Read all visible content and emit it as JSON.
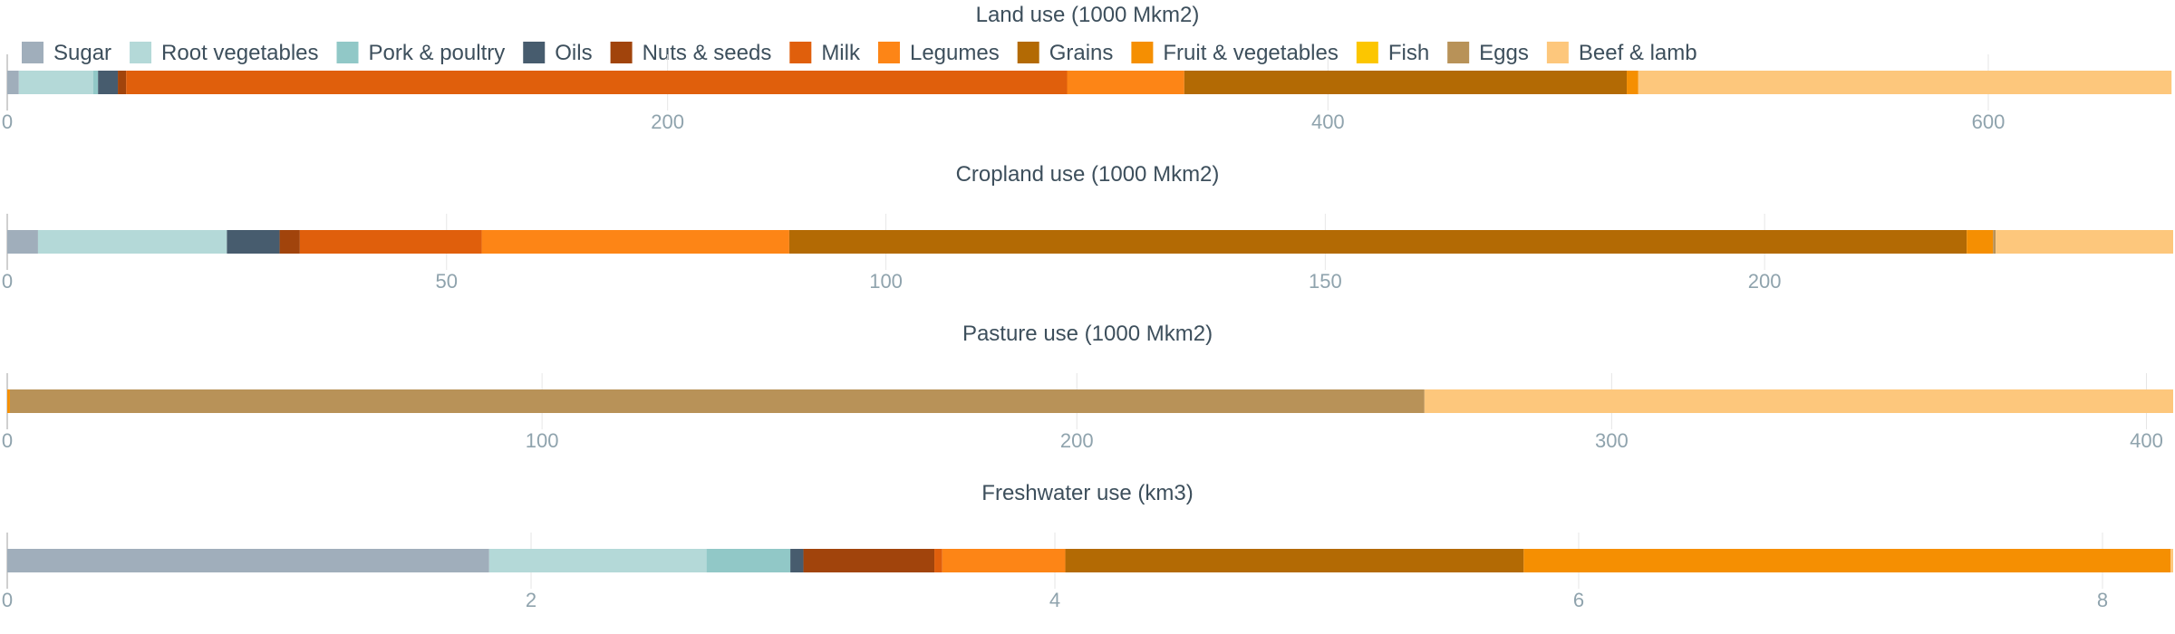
{
  "chart_data": {
    "type": "bar",
    "orientation": "horizontal",
    "stacked": true,
    "grid": true,
    "legend_position": "top",
    "legend": [
      {
        "name": "Sugar",
        "color": "#a0aebb"
      },
      {
        "name": "Root vegetables",
        "color": "#b4d9d8"
      },
      {
        "name": "Pork & poultry",
        "color": "#91c8c7"
      },
      {
        "name": "Oils",
        "color": "#475c6e"
      },
      {
        "name": "Nuts & seeds",
        "color": "#a1440c"
      },
      {
        "name": "Milk",
        "color": "#e05f0c"
      },
      {
        "name": "Legumes",
        "color": "#fd8516"
      },
      {
        "name": "Grains",
        "color": "#b36a04"
      },
      {
        "name": "Fruit & vegetables",
        "color": "#f58f02"
      },
      {
        "name": "Fish",
        "color": "#fcc600"
      },
      {
        "name": "Eggs",
        "color": "#b89258"
      },
      {
        "name": "Beef & lamb",
        "color": "#fdc77c"
      }
    ],
    "panels": [
      {
        "title": "Land use (1000 Mkm2)",
        "xlim": [
          0,
          656
        ],
        "ticks": [
          0,
          200,
          400,
          600
        ],
        "tick_labels": [
          "0",
          "200",
          "400",
          "600"
        ],
        "segments": [
          {
            "series": "Sugar",
            "value": 3.5
          },
          {
            "series": "Root vegetables",
            "value": 22.5
          },
          {
            "series": "Pork & poultry",
            "value": 1.5
          },
          {
            "series": "Oils",
            "value": 6
          },
          {
            "series": "Nuts & seeds",
            "value": 2.5
          },
          {
            "series": "Milk",
            "value": 285
          },
          {
            "series": "Legumes",
            "value": 35.5
          },
          {
            "series": "Grains",
            "value": 134
          },
          {
            "series": "Fruit & vegetables",
            "value": 3.5
          },
          {
            "series": "Fish",
            "value": 0
          },
          {
            "series": "Eggs",
            "value": 0
          },
          {
            "series": "Beef & lamb",
            "value": 161.5
          }
        ]
      },
      {
        "title": "Cropland use (1000 Mkm2)",
        "xlim": [
          0,
          246.5
        ],
        "ticks": [
          0,
          50,
          100,
          150,
          200
        ],
        "tick_labels": [
          "0",
          "50",
          "100",
          "150",
          "200"
        ],
        "segments": [
          {
            "series": "Sugar",
            "value": 3.5
          },
          {
            "series": "Root vegetables",
            "value": 21.5
          },
          {
            "series": "Pork & poultry",
            "value": 0
          },
          {
            "series": "Oils",
            "value": 6
          },
          {
            "series": "Nuts & seeds",
            "value": 2.3
          },
          {
            "series": "Milk",
            "value": 20.7
          },
          {
            "series": "Legumes",
            "value": 35
          },
          {
            "series": "Grains",
            "value": 134
          },
          {
            "series": "Fruit & vegetables",
            "value": 3
          },
          {
            "series": "Fish",
            "value": 0
          },
          {
            "series": "Eggs",
            "value": 0.3
          },
          {
            "series": "Beef & lamb",
            "value": 20.2
          }
        ]
      },
      {
        "title": "Pasture use (1000 Mkm2)",
        "xlim": [
          0,
          405
        ],
        "ticks": [
          0,
          100,
          200,
          300,
          400
        ],
        "tick_labels": [
          "0",
          "100",
          "200",
          "300",
          "400"
        ],
        "segments": [
          {
            "series": "Sugar",
            "value": 0
          },
          {
            "series": "Root vegetables",
            "value": 0
          },
          {
            "series": "Pork & poultry",
            "value": 0
          },
          {
            "series": "Oils",
            "value": 0
          },
          {
            "series": "Nuts & seeds",
            "value": 0
          },
          {
            "series": "Milk",
            "value": 0
          },
          {
            "series": "Legumes",
            "value": 0
          },
          {
            "series": "Grains",
            "value": 0
          },
          {
            "series": "Fruit & vegetables",
            "value": 0.5
          },
          {
            "series": "Fish",
            "value": 0
          },
          {
            "series": "Eggs",
            "value": 264.5
          },
          {
            "series": "Beef & lamb",
            "value": 140
          }
        ]
      },
      {
        "title": "Freshwater use (km3)",
        "xlim": [
          0,
          8.27
        ],
        "ticks": [
          0,
          2,
          4,
          6,
          8
        ],
        "tick_labels": [
          "0",
          "2",
          "4",
          "6",
          "8"
        ],
        "segments": [
          {
            "series": "Sugar",
            "value": 1.84
          },
          {
            "series": "Root vegetables",
            "value": 0.83
          },
          {
            "series": "Pork & poultry",
            "value": 0.32
          },
          {
            "series": "Oils",
            "value": 0.05
          },
          {
            "series": "Nuts & seeds",
            "value": 0.5
          },
          {
            "series": "Milk",
            "value": 0.03
          },
          {
            "series": "Legumes",
            "value": 0.47
          },
          {
            "series": "Grains",
            "value": 1.75
          },
          {
            "series": "Fruit & vegetables",
            "value": 2.47
          },
          {
            "series": "Fish",
            "value": 0
          },
          {
            "series": "Eggs",
            "value": 0
          },
          {
            "series": "Beef & lamb",
            "value": 0.01
          }
        ]
      }
    ]
  }
}
